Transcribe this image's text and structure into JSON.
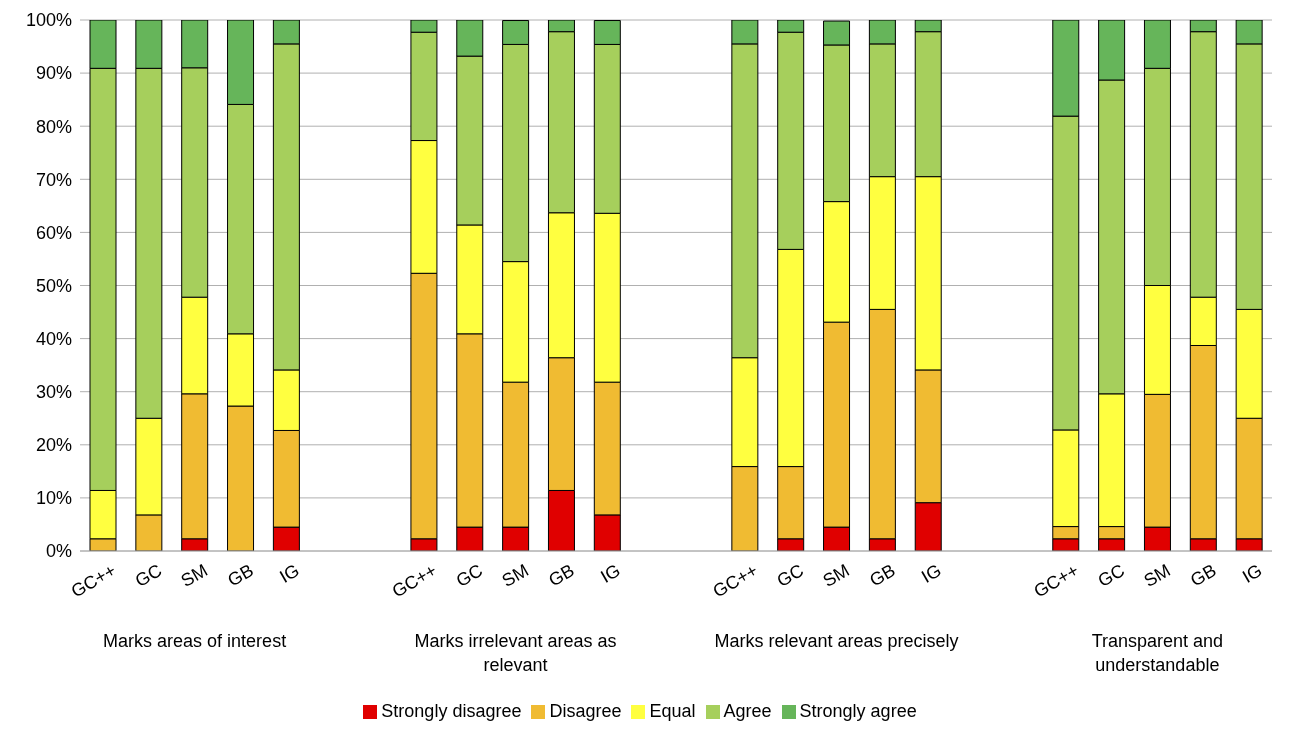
{
  "chart_data": {
    "type": "bar",
    "stacked": true,
    "categories": [
      "GC++",
      "GC",
      "SM",
      "GB",
      "IG",
      null,
      null,
      "GC++",
      "GC",
      "SM",
      "GB",
      "IG",
      null,
      null,
      "GC++",
      "GC",
      "SM",
      "GB",
      "IG",
      null,
      null,
      "GC++",
      "GC",
      "SM",
      "GB",
      "IG"
    ],
    "series": [
      {
        "name": "Strongly disagree",
        "color": "#e00000",
        "values": [
          0,
          0,
          2.3,
          0,
          4.5,
          null,
          null,
          2.3,
          4.5,
          4.5,
          11.4,
          6.8,
          null,
          null,
          0,
          2.3,
          4.5,
          2.3,
          9.1,
          null,
          null,
          2.3,
          2.3,
          4.5,
          2.3,
          2.3
        ]
      },
      {
        "name": "Disagree",
        "color": "#f0bb32",
        "values": [
          2.3,
          6.8,
          27.3,
          27.3,
          18.2,
          null,
          null,
          50,
          36.4,
          27.3,
          25,
          25,
          null,
          null,
          15.9,
          13.6,
          38.6,
          43.2,
          25,
          null,
          null,
          2.3,
          2.3,
          25,
          36.4,
          22.7
        ]
      },
      {
        "name": "Equal",
        "color": "#ffff40",
        "values": [
          9.1,
          18.2,
          18.2,
          13.6,
          11.4,
          null,
          null,
          25,
          20.5,
          22.7,
          27.3,
          31.8,
          null,
          null,
          20.5,
          40.9,
          22.7,
          25,
          36.4,
          null,
          null,
          18.2,
          25,
          20.5,
          9.1,
          20.5
        ]
      },
      {
        "name": "Agree",
        "color": "#a6cf5c",
        "values": [
          79.5,
          65.9,
          43.2,
          43.2,
          61.4,
          null,
          null,
          20.4,
          31.8,
          40.9,
          34.1,
          31.8,
          null,
          null,
          59.1,
          40.9,
          29.5,
          25,
          27.3,
          null,
          null,
          59.1,
          59.1,
          40.9,
          50,
          50
        ]
      },
      {
        "name": "Strongly agree",
        "color": "#66b55a",
        "values": [
          9.1,
          9.1,
          9.1,
          15.9,
          4.5,
          null,
          null,
          2.3,
          6.8,
          4.5,
          2.3,
          4.5,
          null,
          null,
          4.5,
          2.3,
          4.5,
          4.5,
          2.3,
          null,
          null,
          18.2,
          11.4,
          9.1,
          2.3,
          4.5
        ]
      }
    ],
    "ylim": [
      0,
      100
    ],
    "yticks": [
      {
        "value": 0,
        "label": "0%"
      },
      {
        "value": 10,
        "label": "10%"
      },
      {
        "value": 20,
        "label": "20%"
      },
      {
        "value": 30,
        "label": "30%"
      },
      {
        "value": 40,
        "label": "40%"
      },
      {
        "value": 50,
        "label": "50%"
      },
      {
        "value": 60,
        "label": "60%"
      },
      {
        "value": 70,
        "label": "70%"
      },
      {
        "value": 80,
        "label": "80%"
      },
      {
        "value": 90,
        "label": "90%"
      },
      {
        "value": 100,
        "label": "100%"
      }
    ],
    "grid": "y",
    "legend": "bottom",
    "annotations": [
      "Marks areas of interest",
      "Marks irrelevant areas as relevant",
      "Marks relevant areas precisely",
      "Transparent and understandable"
    ]
  }
}
